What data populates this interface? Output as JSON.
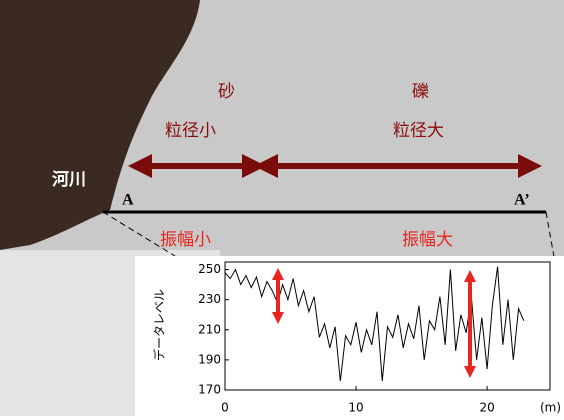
{
  "annotations": {
    "sand": "砂",
    "small_grain": "粒径小",
    "gravel": "礫",
    "large_grain": "粒径大",
    "river": "河川",
    "point_a": "A",
    "point_a2": "A’",
    "small_amp": "振幅小",
    "large_amp": "振幅大"
  },
  "chart_data": {
    "type": "line",
    "ylabel": "データレベル",
    "xunit": "(m)",
    "x": [
      0,
      0.4,
      0.8,
      1.2,
      1.6,
      2,
      2.4,
      2.8,
      3.2,
      3.6,
      4,
      4.4,
      4.8,
      5.2,
      5.6,
      6,
      6.4,
      6.8,
      7.2,
      7.6,
      8,
      8.4,
      8.8,
      9.2,
      9.6,
      10,
      10.4,
      10.8,
      11.2,
      11.6,
      12,
      12.4,
      12.8,
      13.2,
      13.6,
      14,
      14.4,
      14.8,
      15.2,
      15.6,
      16,
      16.4,
      16.8,
      17.2,
      17.6,
      18,
      18.4,
      18.8,
      19.2,
      19.6,
      20,
      20.4,
      20.8,
      21.2,
      21.6,
      22,
      22.4,
      22.8
    ],
    "values": [
      248,
      244,
      250,
      240,
      246,
      238,
      245,
      232,
      242,
      236,
      228,
      240,
      230,
      244,
      226,
      236,
      222,
      232,
      205,
      214,
      198,
      212,
      176,
      206,
      200,
      215,
      195,
      210,
      200,
      222,
      176,
      212,
      205,
      220,
      198,
      214,
      204,
      226,
      190,
      216,
      210,
      232,
      200,
      250,
      196,
      220,
      208,
      232,
      190,
      218,
      184,
      226,
      252,
      200,
      230,
      190,
      224,
      216
    ],
    "color": "#000000",
    "xlim": [
      0,
      24.8
    ],
    "ylim": [
      170,
      255
    ],
    "xticks": [
      0,
      10,
      20
    ],
    "yticks": [
      170,
      190,
      210,
      230,
      250
    ]
  }
}
